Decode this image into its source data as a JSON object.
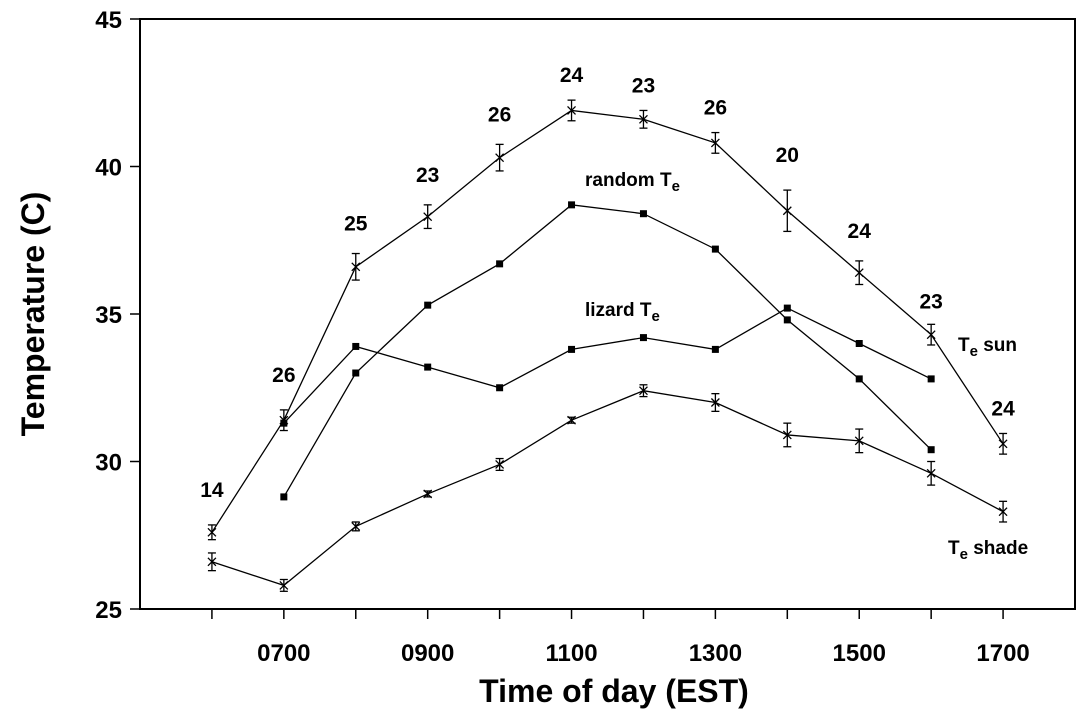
{
  "chart_data": {
    "type": "line",
    "xlabel": "Time of day (EST)",
    "ylabel": "Temperature (C)",
    "ylim": [
      25,
      45
    ],
    "y_ticks": [
      25,
      30,
      35,
      40,
      45
    ],
    "x_tick_labels": [
      "0700",
      "0900",
      "1100",
      "1300",
      "1500",
      "1700"
    ],
    "series": [
      {
        "name": "Te sun",
        "label_main": "T",
        "label_sub": "e",
        "label_rest": " sun",
        "marker": "x",
        "error_bars": true,
        "points": [
          {
            "x": 600,
            "y": 27.6,
            "err": 0.25
          },
          {
            "x": 700,
            "y": 31.4,
            "err": 0.35
          },
          {
            "x": 800,
            "y": 36.6,
            "err": 0.45
          },
          {
            "x": 900,
            "y": 38.3,
            "err": 0.4
          },
          {
            "x": 1000,
            "y": 40.3,
            "err": 0.45
          },
          {
            "x": 1100,
            "y": 41.9,
            "err": 0.35
          },
          {
            "x": 1200,
            "y": 41.6,
            "err": 0.3
          },
          {
            "x": 1300,
            "y": 40.8,
            "err": 0.35
          },
          {
            "x": 1400,
            "y": 38.5,
            "err": 0.7
          },
          {
            "x": 1500,
            "y": 36.4,
            "err": 0.4
          },
          {
            "x": 1600,
            "y": 34.3,
            "err": 0.35
          },
          {
            "x": 1700,
            "y": 30.6,
            "err": 0.35
          }
        ]
      },
      {
        "name": "random Te",
        "label_main": "random T",
        "label_sub": "e",
        "label_rest": "",
        "marker": "square",
        "error_bars": false,
        "points": [
          {
            "x": 700,
            "y": 28.8
          },
          {
            "x": 800,
            "y": 33.0
          },
          {
            "x": 900,
            "y": 35.3
          },
          {
            "x": 1000,
            "y": 36.7
          },
          {
            "x": 1100,
            "y": 38.7
          },
          {
            "x": 1200,
            "y": 38.4
          },
          {
            "x": 1300,
            "y": 37.2
          },
          {
            "x": 1400,
            "y": 34.8
          },
          {
            "x": 1500,
            "y": 32.8
          },
          {
            "x": 1600,
            "y": 30.4
          }
        ]
      },
      {
        "name": "lizard Te",
        "label_main": "lizard T",
        "label_sub": "e",
        "label_rest": "",
        "marker": "square",
        "error_bars": false,
        "points": [
          {
            "x": 700,
            "y": 31.3
          },
          {
            "x": 800,
            "y": 33.9
          },
          {
            "x": 900,
            "y": 33.2
          },
          {
            "x": 1000,
            "y": 32.5
          },
          {
            "x": 1100,
            "y": 33.8
          },
          {
            "x": 1200,
            "y": 34.2
          },
          {
            "x": 1300,
            "y": 33.8
          },
          {
            "x": 1400,
            "y": 35.2
          },
          {
            "x": 1500,
            "y": 34.0
          },
          {
            "x": 1600,
            "y": 32.8
          }
        ]
      },
      {
        "name": "Te shade",
        "label_main": "T",
        "label_sub": "e",
        "label_rest": " shade",
        "marker": "x",
        "error_bars": true,
        "points": [
          {
            "x": 600,
            "y": 26.6,
            "err": 0.3
          },
          {
            "x": 700,
            "y": 25.8,
            "err": 0.2
          },
          {
            "x": 800,
            "y": 27.8,
            "err": 0.15
          },
          {
            "x": 900,
            "y": 28.9,
            "err": 0.1
          },
          {
            "x": 1000,
            "y": 29.9,
            "err": 0.2
          },
          {
            "x": 1100,
            "y": 31.4,
            "err": 0.1
          },
          {
            "x": 1200,
            "y": 32.4,
            "err": 0.2
          },
          {
            "x": 1300,
            "y": 32.0,
            "err": 0.3
          },
          {
            "x": 1400,
            "y": 30.9,
            "err": 0.4
          },
          {
            "x": 1500,
            "y": 30.7,
            "err": 0.4
          },
          {
            "x": 1600,
            "y": 29.6,
            "err": 0.4
          },
          {
            "x": 1700,
            "y": 28.3,
            "err": 0.35
          }
        ]
      }
    ],
    "sample_sizes": [
      {
        "x": 600,
        "label": "14"
      },
      {
        "x": 700,
        "label": "26"
      },
      {
        "x": 800,
        "label": "25"
      },
      {
        "x": 900,
        "label": "23"
      },
      {
        "x": 1000,
        "label": "26"
      },
      {
        "x": 1100,
        "label": "24"
      },
      {
        "x": 1200,
        "label": "23"
      },
      {
        "x": 1300,
        "label": "26"
      },
      {
        "x": 1400,
        "label": "20"
      },
      {
        "x": 1500,
        "label": "24"
      },
      {
        "x": 1600,
        "label": "23"
      },
      {
        "x": 1700,
        "label": "24"
      }
    ]
  }
}
